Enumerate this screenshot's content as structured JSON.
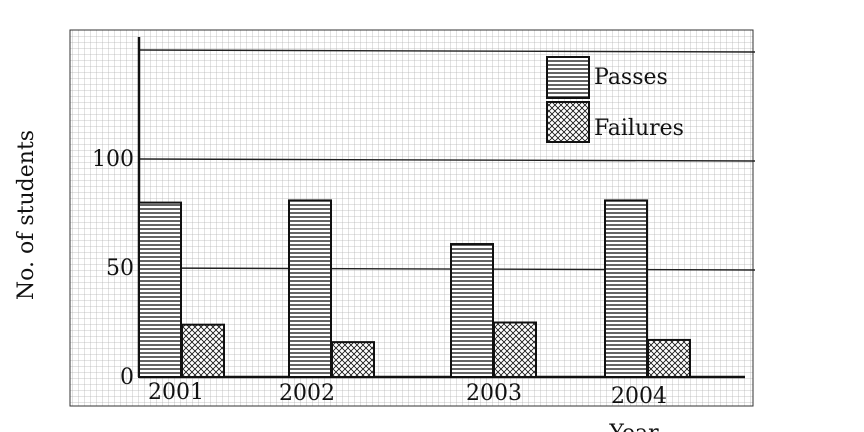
{
  "chart_data": {
    "type": "bar",
    "title": "",
    "xlabel": "Year",
    "ylabel": "No. of students",
    "categories": [
      "2001",
      "2002",
      "2003",
      "2004"
    ],
    "series": [
      {
        "name": "Passes",
        "values": [
          80,
          81,
          61,
          81
        ],
        "pattern": "horizontal-lines"
      },
      {
        "name": "Failures",
        "values": [
          24,
          16,
          25,
          17
        ],
        "pattern": "cross-hatch"
      }
    ],
    "ylim": [
      0,
      150
    ],
    "yticks": [
      "0",
      "50",
      "100"
    ],
    "reference_lines": [
      50,
      100,
      150
    ],
    "grid": true,
    "legend_position": "top-right",
    "colors": {
      "ink": "#111111",
      "grid": "#b5b5b5",
      "background": "#ffffff"
    }
  }
}
